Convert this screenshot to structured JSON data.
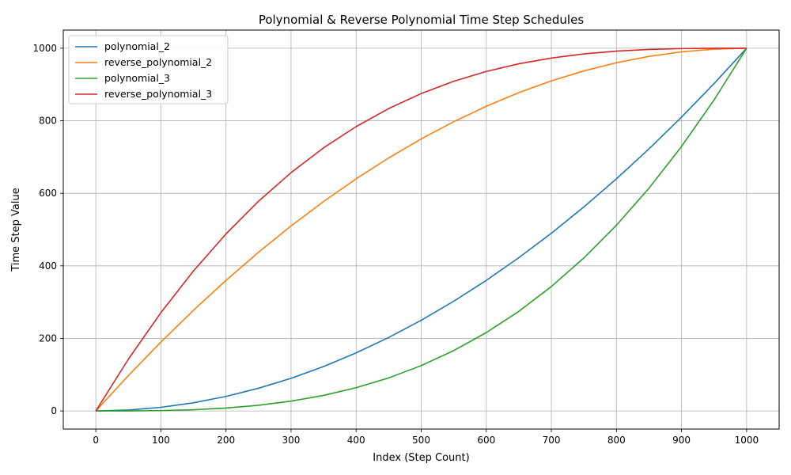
{
  "chart_data": {
    "type": "line",
    "title": "Polynomial & Reverse Polynomial Time Step Schedules",
    "xlabel": "Index (Step Count)",
    "ylabel": "Time Step Value",
    "xlim": [
      -50,
      1050
    ],
    "ylim": [
      -50,
      1050
    ],
    "xticks": [
      0,
      100,
      200,
      300,
      400,
      500,
      600,
      700,
      800,
      900,
      1000
    ],
    "yticks": [
      0,
      200,
      400,
      600,
      800,
      1000
    ],
    "grid": true,
    "legend_position": "top-left",
    "x": [
      0,
      50,
      100,
      150,
      200,
      250,
      300,
      350,
      400,
      450,
      500,
      550,
      600,
      650,
      700,
      750,
      800,
      850,
      900,
      950,
      1000
    ],
    "series": [
      {
        "name": "polynomial_2",
        "color": "#1f77b4",
        "values": [
          0,
          2.5,
          10,
          22.5,
          40,
          62.5,
          90,
          122.5,
          160,
          202.5,
          250,
          302.5,
          360,
          422.5,
          490,
          562.5,
          640,
          722.5,
          810,
          902.5,
          1000
        ]
      },
      {
        "name": "reverse_polynomial_2",
        "color": "#ff7f0e",
        "values": [
          0,
          97.5,
          190,
          277.5,
          360,
          437.5,
          510,
          577.5,
          640,
          697.5,
          750,
          797.5,
          840,
          877.5,
          910,
          937.5,
          960,
          977.5,
          990,
          997.5,
          1000
        ]
      },
      {
        "name": "polynomial_3",
        "color": "#2ca02c",
        "values": [
          0,
          0.1,
          1,
          3.4,
          8,
          15.6,
          27,
          42.9,
          64,
          91.1,
          125,
          166.4,
          216,
          274.6,
          343,
          421.9,
          512,
          614.1,
          729,
          857.4,
          1000
        ]
      },
      {
        "name": "reverse_polynomial_3",
        "color": "#d62728",
        "values": [
          0,
          142.6,
          271,
          385.9,
          488,
          578.1,
          657,
          725.4,
          784,
          833.6,
          875,
          908.9,
          936,
          957.1,
          973,
          984.4,
          992,
          996.6,
          999,
          999.9,
          1000
        ]
      }
    ]
  }
}
